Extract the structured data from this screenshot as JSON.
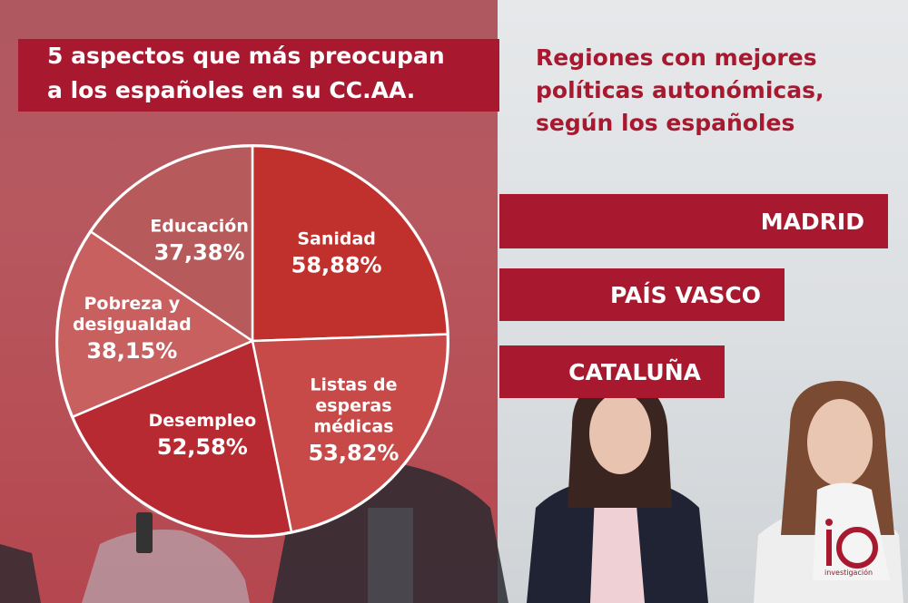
{
  "left_title": {
    "line1": "5 aspectos que más preocupan",
    "line2": "a los españoles en su CC.AA."
  },
  "right_title": {
    "line1": "Regiones con mejores",
    "line2": "políticas autonómicas,",
    "line3": "según los españoles"
  },
  "regions": [
    "MADRID",
    "PAÍS VASCO",
    "CATALUÑA"
  ],
  "colors": {
    "brand_red": "#a8192f",
    "slice_sanidad": "#c0312e",
    "slice_listas": "#c74a48",
    "slice_desempleo": "#b82a32",
    "slice_pobreza": "#c7605f",
    "slice_educacion": "#b65a5b"
  },
  "logo": {
    "text": "io",
    "sub": "investigación"
  },
  "chart_data": {
    "type": "pie",
    "title": "5 aspectos que más preocupan a los españoles en su CC.AA.",
    "slices": [
      {
        "name": "Sanidad",
        "label_lines": [
          "Sanidad"
        ],
        "value": 58.88,
        "value_label": "58,88%"
      },
      {
        "name": "Listas de esperas médicas",
        "label_lines": [
          "Listas de",
          "esperas",
          "médicas"
        ],
        "value": 53.82,
        "value_label": "53,82%"
      },
      {
        "name": "Desempleo",
        "label_lines": [
          "Desempleo"
        ],
        "value": 52.58,
        "value_label": "52,58%"
      },
      {
        "name": "Pobreza y desigualdad",
        "label_lines": [
          "Pobreza y",
          "desigualdad"
        ],
        "value": 38.15,
        "value_label": "38,15%"
      },
      {
        "name": "Educación",
        "label_lines": [
          "Educación"
        ],
        "value": 37.38,
        "value_label": "37,38%"
      }
    ]
  }
}
